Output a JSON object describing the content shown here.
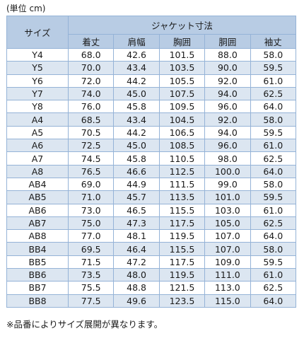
{
  "unit_label": "(単位 cm)",
  "table": {
    "size_header": "サイズ",
    "group_header": "ジャケット寸法",
    "columns": [
      "着丈",
      "肩幅",
      "胸囲",
      "胴囲",
      "袖丈"
    ],
    "rows": [
      {
        "size": "Y4",
        "values": [
          "68.0",
          "42.6",
          "101.5",
          "88.0",
          "58.0"
        ]
      },
      {
        "size": "Y5",
        "values": [
          "70.0",
          "43.4",
          "103.5",
          "90.0",
          "59.5"
        ]
      },
      {
        "size": "Y6",
        "values": [
          "72.0",
          "44.2",
          "105.5",
          "92.0",
          "61.0"
        ]
      },
      {
        "size": "Y7",
        "values": [
          "74.0",
          "45.0",
          "107.5",
          "94.0",
          "62.5"
        ]
      },
      {
        "size": "Y8",
        "values": [
          "76.0",
          "45.8",
          "109.5",
          "96.0",
          "64.0"
        ]
      },
      {
        "size": "A4",
        "values": [
          "68.5",
          "43.4",
          "104.5",
          "92.0",
          "58.0"
        ]
      },
      {
        "size": "A5",
        "values": [
          "70.5",
          "44.2",
          "106.5",
          "94.0",
          "59.5"
        ]
      },
      {
        "size": "A6",
        "values": [
          "72.5",
          "45.0",
          "108.5",
          "96.0",
          "61.0"
        ]
      },
      {
        "size": "A7",
        "values": [
          "74.5",
          "45.8",
          "110.5",
          "98.0",
          "62.5"
        ]
      },
      {
        "size": "A8",
        "values": [
          "76.5",
          "46.6",
          "112.5",
          "100.0",
          "64.0"
        ]
      },
      {
        "size": "AB4",
        "values": [
          "69.0",
          "44.9",
          "111.5",
          "99.0",
          "58.0"
        ]
      },
      {
        "size": "AB5",
        "values": [
          "71.0",
          "45.7",
          "113.5",
          "101.0",
          "59.5"
        ]
      },
      {
        "size": "AB6",
        "values": [
          "73.0",
          "46.5",
          "115.5",
          "103.0",
          "61.0"
        ]
      },
      {
        "size": "AB7",
        "values": [
          "75.0",
          "47.3",
          "117.5",
          "105.0",
          "62.5"
        ]
      },
      {
        "size": "AB8",
        "values": [
          "77.0",
          "48.1",
          "119.5",
          "107.0",
          "64.0"
        ]
      },
      {
        "size": "BB4",
        "values": [
          "69.5",
          "46.4",
          "115.5",
          "107.0",
          "58.0"
        ]
      },
      {
        "size": "BB5",
        "values": [
          "71.5",
          "47.2",
          "117.5",
          "109.0",
          "59.5"
        ]
      },
      {
        "size": "BB6",
        "values": [
          "73.5",
          "48.0",
          "119.5",
          "111.0",
          "61.0"
        ]
      },
      {
        "size": "BB7",
        "values": [
          "75.5",
          "48.8",
          "121.5",
          "113.0",
          "62.5"
        ]
      },
      {
        "size": "BB8",
        "values": [
          "77.5",
          "49.6",
          "123.5",
          "115.0",
          "64.0"
        ]
      }
    ]
  },
  "note": "※品番によりサイズ展開が異なります。",
  "colors": {
    "header_bg": "#b8cce4",
    "stripe_bg": "#dce6f1",
    "border": "#95b3d7"
  }
}
